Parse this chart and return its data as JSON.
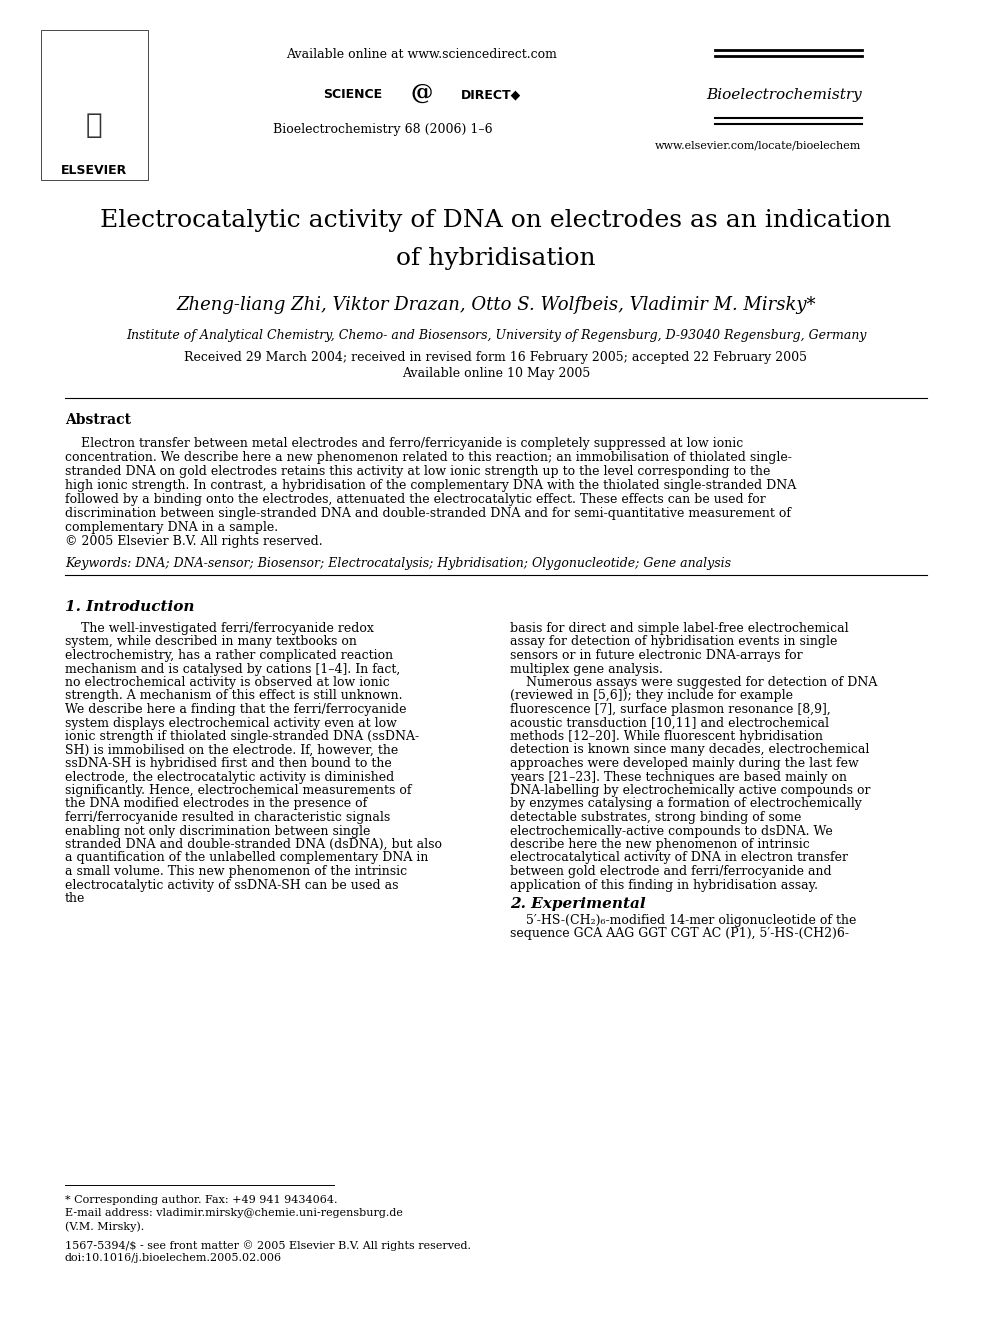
{
  "bg_color": "#ffffff",
  "title_line1": "Electrocatalytic activity of DNA on electrodes as an indication",
  "title_line2": "of hybridisation",
  "authors": "Zheng-liang Zhi, Viktor Drazan, Otto S. Wolfbeis, Vladimir M. Mirsky*",
  "affiliation": "Institute of Analytical Chemistry, Chemo- and Biosensors, University of Regensburg, D-93040 Regensburg, Germany",
  "received": "Received 29 March 2004; received in revised form 16 February 2005; accepted 22 February 2005",
  "available_online": "Available online 10 May 2005",
  "journal_header": "Available online at www.sciencedirect.com",
  "journal_name": "Bioelectrochemistry",
  "journal_issue": "Bioelectrochemistry 68 (2006) 1–6",
  "journal_url": "www.elsevier.com/locate/bioelechem",
  "abstract_title": "Abstract",
  "abstract_text": "    Electron transfer between metal electrodes and ferro/ferricyanide is completely suppressed at low ionic concentration. We describe here a new phenomenon related to this reaction; an immobilisation of thiolated single-stranded DNA on gold electrodes retains this activity at low ionic strength up to the level corresponding to the high ionic strength. In contrast, a hybridisation of the complementary DNA with the thiolated single-stranded DNA followed by a binding onto the electrodes, attenuated the electrocatalytic effect. These effects can be used for discrimination between single-stranded DNA and double-stranded DNA and for semi-quantitative measurement of complementary DNA in a sample.\n© 2005 Elsevier B.V. All rights reserved.",
  "keywords": "Keywords: DNA; DNA-sensor; Biosensor; Electrocatalysis; Hybridisation; Olygonucleotide; Gene analysis",
  "section1_title": "1. Introduction",
  "section1_col1": "    The well-investigated ferri/ferrocyanide redox system, while described in many textbooks on electrochemistry, has a rather complicated reaction mechanism and is catalysed by cations [1–4]. In fact, no electrochemical activity is observed at low ionic strength. A mechanism of this effect is still unknown. We describe here a finding that the ferri/ferrocyanide system displays electrochemical activity even at low ionic strength if thiolated single-stranded DNA (ssDNA-SH) is immobilised on the electrode. If, however, the ssDNA-SH is hybridised first and then bound to the electrode, the electrocatalytic activity is diminished significantly. Hence, electrochemical measurements of the DNA modified electrodes in the presence of ferri/ferrocyanide resulted in characteristic signals enabling not only discrimination between single stranded DNA and double-stranded DNA (dsDNA), but also a quantification of the unlabelled complementary DNA in a small volume. This new phenomenon of the intrinsic electrocatalytic activity of ssDNA-SH can be used as the",
  "section1_col2": "basis for direct and simple label-free electrochemical assay for detection of hybridisation events in single sensors or in future electronic DNA-arrays for multiplex gene analysis.\n    Numerous assays were suggested for detection of DNA (reviewed in [5,6]); they include for example fluorescence [7], surface plasmon resonance [8,9], acoustic transduction [10,11] and electrochemical methods [12–20]. While fluorescent hybridisation detection is known since many decades, electrochemical approaches were developed mainly during the last few years [21–23]. These techniques are based mainly on DNA-labelling by electrochemically active compounds or by enzymes catalysing a formation of electrochemically detectable substrates, strong binding of some electrochemically-active compounds to dsDNA. We describe here the new phenomenon of intrinsic electrocatalytical activity of DNA in electron transfer between gold electrode and ferri/ferrocyanide and application of this finding in hybridisation assay.",
  "section2_title": "2. Experimental",
  "section2_text": "    5′-HS-(CH₂)₆-modified 14-mer oligonucleotide of the sequence GCA AAG GGT CGT AC (P1), 5′-HS-(CH2)6-",
  "footnote_star": "* Corresponding author. Fax: +49 941 9434064.",
  "footnote_email": "E-mail address: vladimir.mirsky@chemie.uni-regensburg.de",
  "footnote_vm": "(V.M. Mirsky).",
  "footer_issn": "1567-5394/$ - see front matter © 2005 Elsevier B.V. All rights reserved.",
  "footer_doi": "doi:10.1016/j.bioelechem.2005.02.006"
}
